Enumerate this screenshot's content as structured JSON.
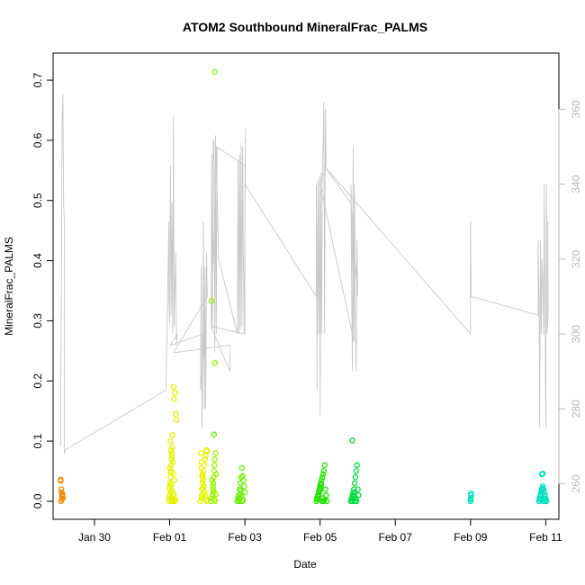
{
  "chart_data": {
    "type": "scatter",
    "title": "ATOM2 Southbound MineralFrac_PALMS",
    "xlabel": "Date",
    "ylabel": "MineralFrac_PALMS",
    "x_ticks": [
      {
        "day": 30,
        "label": "Jan 30"
      },
      {
        "day": 32,
        "label": "Feb 01"
      },
      {
        "day": 34,
        "label": "Feb 03"
      },
      {
        "day": 36,
        "label": "Feb 05"
      },
      {
        "day": 38,
        "label": "Feb 07"
      },
      {
        "day": 40,
        "label": "Feb 09"
      },
      {
        "day": 42,
        "label": "Feb 11"
      }
    ],
    "xlim_days": [
      28.9,
      42.35
    ],
    "ylim": [
      -0.03,
      0.745
    ],
    "y_ticks": [
      0.0,
      0.1,
      0.2,
      0.3,
      0.4,
      0.5,
      0.6,
      0.7
    ],
    "y_tick_labels": [
      "0.0",
      "0.1",
      "0.2",
      "0.3",
      "0.4",
      "0.5",
      "0.6",
      "0.7"
    ],
    "y2lim": [
      250.5,
      375.0
    ],
    "y2_ticks": [
      260,
      280,
      300,
      320,
      340,
      360
    ],
    "y2_tick_labels": [
      "260",
      "280",
      "300",
      "320",
      "340",
      "360"
    ],
    "series": [
      {
        "color": "#f08c00",
        "x_day": [
          29.1,
          29.1,
          29.12,
          29.12,
          29.14,
          29.15,
          29.16,
          29.13,
          29.11,
          29.15
        ],
        "y": [
          0.036,
          0.034,
          0.02,
          0.015,
          0.01,
          0.008,
          0.005,
          0.003,
          0.0,
          0.012
        ]
      },
      {
        "color": "#e6f200",
        "x_day": [
          31.98,
          31.99,
          32.0,
          32.0,
          32.01,
          32.02,
          32.03,
          32.04,
          32.05,
          32.06,
          32.07,
          32.08,
          32.1,
          32.12,
          32.14,
          32.16,
          32.18,
          32.02,
          32.04,
          32.06,
          32.08,
          32.1,
          32.12,
          32.0,
          32.03,
          32.05,
          32.07,
          32.09,
          32.11,
          32.13,
          32.15,
          32.01,
          32.03,
          32.05,
          32.07,
          32.09
        ],
        "y": [
          0.0,
          0.005,
          0.01,
          0.02,
          0.03,
          0.04,
          0.05,
          0.06,
          0.07,
          0.08,
          0.09,
          0.11,
          0.19,
          0.17,
          0.18,
          0.145,
          0.135,
          0.1,
          0.085,
          0.075,
          0.065,
          0.045,
          0.035,
          0.025,
          0.015,
          0.0,
          0.003,
          0.008,
          0.012,
          0.0,
          0.002,
          0.055,
          0.048,
          0.028,
          0.018,
          0.0
        ]
      },
      {
        "color": "#e6f200",
        "x_day": [
          32.82,
          32.84,
          32.85,
          32.86,
          32.87,
          32.88,
          32.9,
          32.92,
          32.94,
          32.96,
          32.98,
          33.0,
          32.83,
          32.85,
          32.87,
          32.89,
          32.91,
          32.93,
          32.95,
          32.97,
          32.99,
          32.84,
          32.86,
          32.88,
          32.9
        ],
        "y": [
          0.0,
          0.005,
          0.01,
          0.02,
          0.03,
          0.04,
          0.05,
          0.06,
          0.07,
          0.075,
          0.085,
          0.083,
          0.08,
          0.065,
          0.045,
          0.035,
          0.025,
          0.015,
          0.008,
          0.003,
          0.0,
          0.055,
          0.042,
          0.022,
          0.012
        ]
      },
      {
        "color": "#99f200",
        "x_day": [
          33.1,
          33.12,
          33.14,
          33.15,
          33.16,
          33.17,
          33.18,
          33.19,
          33.2,
          33.22,
          33.24,
          33.13,
          33.15,
          33.17,
          33.19,
          33.21,
          33.23,
          33.11,
          33.2,
          33.2
        ],
        "y": [
          0.0,
          0.005,
          0.01,
          0.02,
          0.03,
          0.04,
          0.05,
          0.06,
          0.07,
          0.08,
          0.045,
          0.035,
          0.025,
          0.015,
          0.003,
          0.0,
          0.012,
          0.333,
          0.23,
          0.714
        ]
      },
      {
        "color": "#66f000",
        "x_day": [
          33.18,
          33.8,
          33.82,
          33.84,
          33.86,
          33.88,
          33.9,
          33.92,
          33.94,
          33.96,
          33.98,
          34.0,
          33.83,
          33.85,
          33.87,
          33.89,
          33.91,
          33.93,
          33.95
        ],
        "y": [
          0.111,
          0.0,
          0.005,
          0.01,
          0.02,
          0.03,
          0.04,
          0.055,
          0.042,
          0.035,
          0.025,
          0.015,
          0.003,
          0.0,
          0.012,
          0.018,
          0.008,
          0.0,
          0.003
        ]
      },
      {
        "color": "#22e000",
        "x_day": [
          35.9,
          35.92,
          35.94,
          35.96,
          35.98,
          36.0,
          36.02,
          36.04,
          36.06,
          36.08,
          36.1,
          36.12,
          36.14,
          36.16,
          36.18,
          35.93,
          35.95,
          35.97,
          35.99,
          36.01,
          36.03,
          36.05,
          36.07,
          36.09,
          36.11
        ],
        "y": [
          0.0,
          0.005,
          0.01,
          0.015,
          0.02,
          0.025,
          0.03,
          0.035,
          0.04,
          0.045,
          0.05,
          0.06,
          0.02,
          0.01,
          0.0,
          0.003,
          0.008,
          0.012,
          0.018,
          0.022,
          0.028,
          0.0,
          0.005,
          0.0,
          0.002
        ]
      },
      {
        "color": "#00d840",
        "x_day": [
          36.82,
          36.84,
          36.86,
          36.88,
          36.9,
          36.92,
          36.94,
          36.96,
          36.98,
          37.0,
          37.02,
          36.85,
          36.87,
          36.89,
          36.91,
          36.93,
          36.95,
          36.97,
          36.86
        ],
        "y": [
          0.0,
          0.005,
          0.01,
          0.015,
          0.02,
          0.03,
          0.04,
          0.05,
          0.06,
          0.02,
          0.01,
          0.0,
          0.003,
          0.008,
          0.012,
          0.0,
          0.005,
          0.0,
          0.101
        ]
      },
      {
        "color": "#00e0c0",
        "x_day": [
          40.0,
          40.01,
          40.02,
          40.01,
          40.0,
          41.82,
          41.84,
          41.86,
          41.88,
          41.9,
          41.92,
          41.94,
          41.96,
          41.98,
          42.0,
          42.02,
          41.83,
          41.85,
          41.87,
          41.89,
          41.91,
          41.93,
          41.95,
          41.97,
          41.99,
          41.9,
          41.92
        ],
        "y": [
          0.0,
          0.005,
          0.01,
          0.013,
          0.003,
          0.0,
          0.005,
          0.01,
          0.015,
          0.02,
          0.025,
          0.02,
          0.015,
          0.01,
          0.005,
          0.0,
          0.003,
          0.008,
          0.012,
          0.018,
          0.022,
          0.0,
          0.005,
          0.0,
          0.002,
          0.045,
          0.046
        ]
      }
    ],
    "secondary_line": {
      "color": "#c8c8c8",
      "x_day": [
        29.1,
        29.1,
        29.12,
        29.14,
        29.16,
        29.18,
        29.2,
        29.2,
        29.22,
        31.9,
        31.98,
        31.98,
        32.0,
        32.02,
        32.04,
        32.06,
        32.08,
        32.1,
        32.12,
        32.14,
        32.16,
        32.18,
        32.2,
        32.02,
        32.9,
        32.9,
        32.82,
        32.84,
        32.86,
        32.88,
        32.9,
        32.92,
        32.94,
        32.96,
        32.98,
        33.0,
        32.1,
        33.6,
        33.6,
        33.1,
        33.12,
        33.14,
        33.16,
        33.18,
        33.2,
        33.22,
        33.24,
        33.26,
        33.1,
        34.0,
        34.0,
        33.24,
        33.3,
        33.8,
        33.82,
        33.84,
        33.86,
        33.88,
        33.9,
        33.92,
        33.94,
        33.96,
        33.98,
        34.0,
        34.02,
        34.0,
        35.9,
        35.9,
        35.92,
        35.94,
        35.96,
        35.98,
        36.0,
        36.02,
        36.04,
        36.06,
        36.08,
        36.1,
        36.12,
        36.14,
        36.16,
        36.0,
        36.9,
        36.82,
        36.84,
        36.86,
        36.88,
        36.9,
        36.92,
        36.94,
        36.96,
        36.98,
        37.0,
        36.82,
        36.1,
        36.1,
        40.0,
        40.0,
        40.02,
        40.02,
        41.8,
        41.8,
        41.82,
        41.84,
        41.86,
        41.88,
        41.9,
        41.92,
        41.94,
        41.96,
        41.98,
        42.0,
        42.02,
        42.04,
        42.06,
        42.06,
        42.06
      ],
      "y2": [
        270,
        280,
        310,
        357,
        364,
        335,
        330,
        268,
        269,
        285,
        330,
        310,
        303,
        345,
        305,
        335,
        300,
        358,
        302,
        313,
        322,
        297,
        300,
        297,
        300,
        295,
        285,
        318,
        275,
        295,
        330,
        280,
        318,
        280,
        322,
        310,
        295,
        297,
        290,
        302,
        348,
        301,
        351,
        352,
        295,
        353,
        300,
        350,
        302,
        300,
        345,
        350,
        320,
        300,
        346,
        300,
        348,
        301,
        351,
        302,
        350,
        320,
        300,
        330,
        355,
        340,
        310,
        340,
        285,
        341,
        300,
        342,
        278,
        343,
        300,
        345,
        350,
        362,
        300,
        360,
        345,
        340,
        298,
        340,
        310,
        290,
        350,
        300,
        340,
        300,
        290,
        325,
        310,
        335,
        345,
        345,
        300,
        330,
        310,
        310,
        305,
        325,
        310,
        275,
        325,
        300,
        320,
        315,
        300,
        340,
        310,
        275,
        340,
        300,
        305,
        330,
        310
      ]
    }
  }
}
